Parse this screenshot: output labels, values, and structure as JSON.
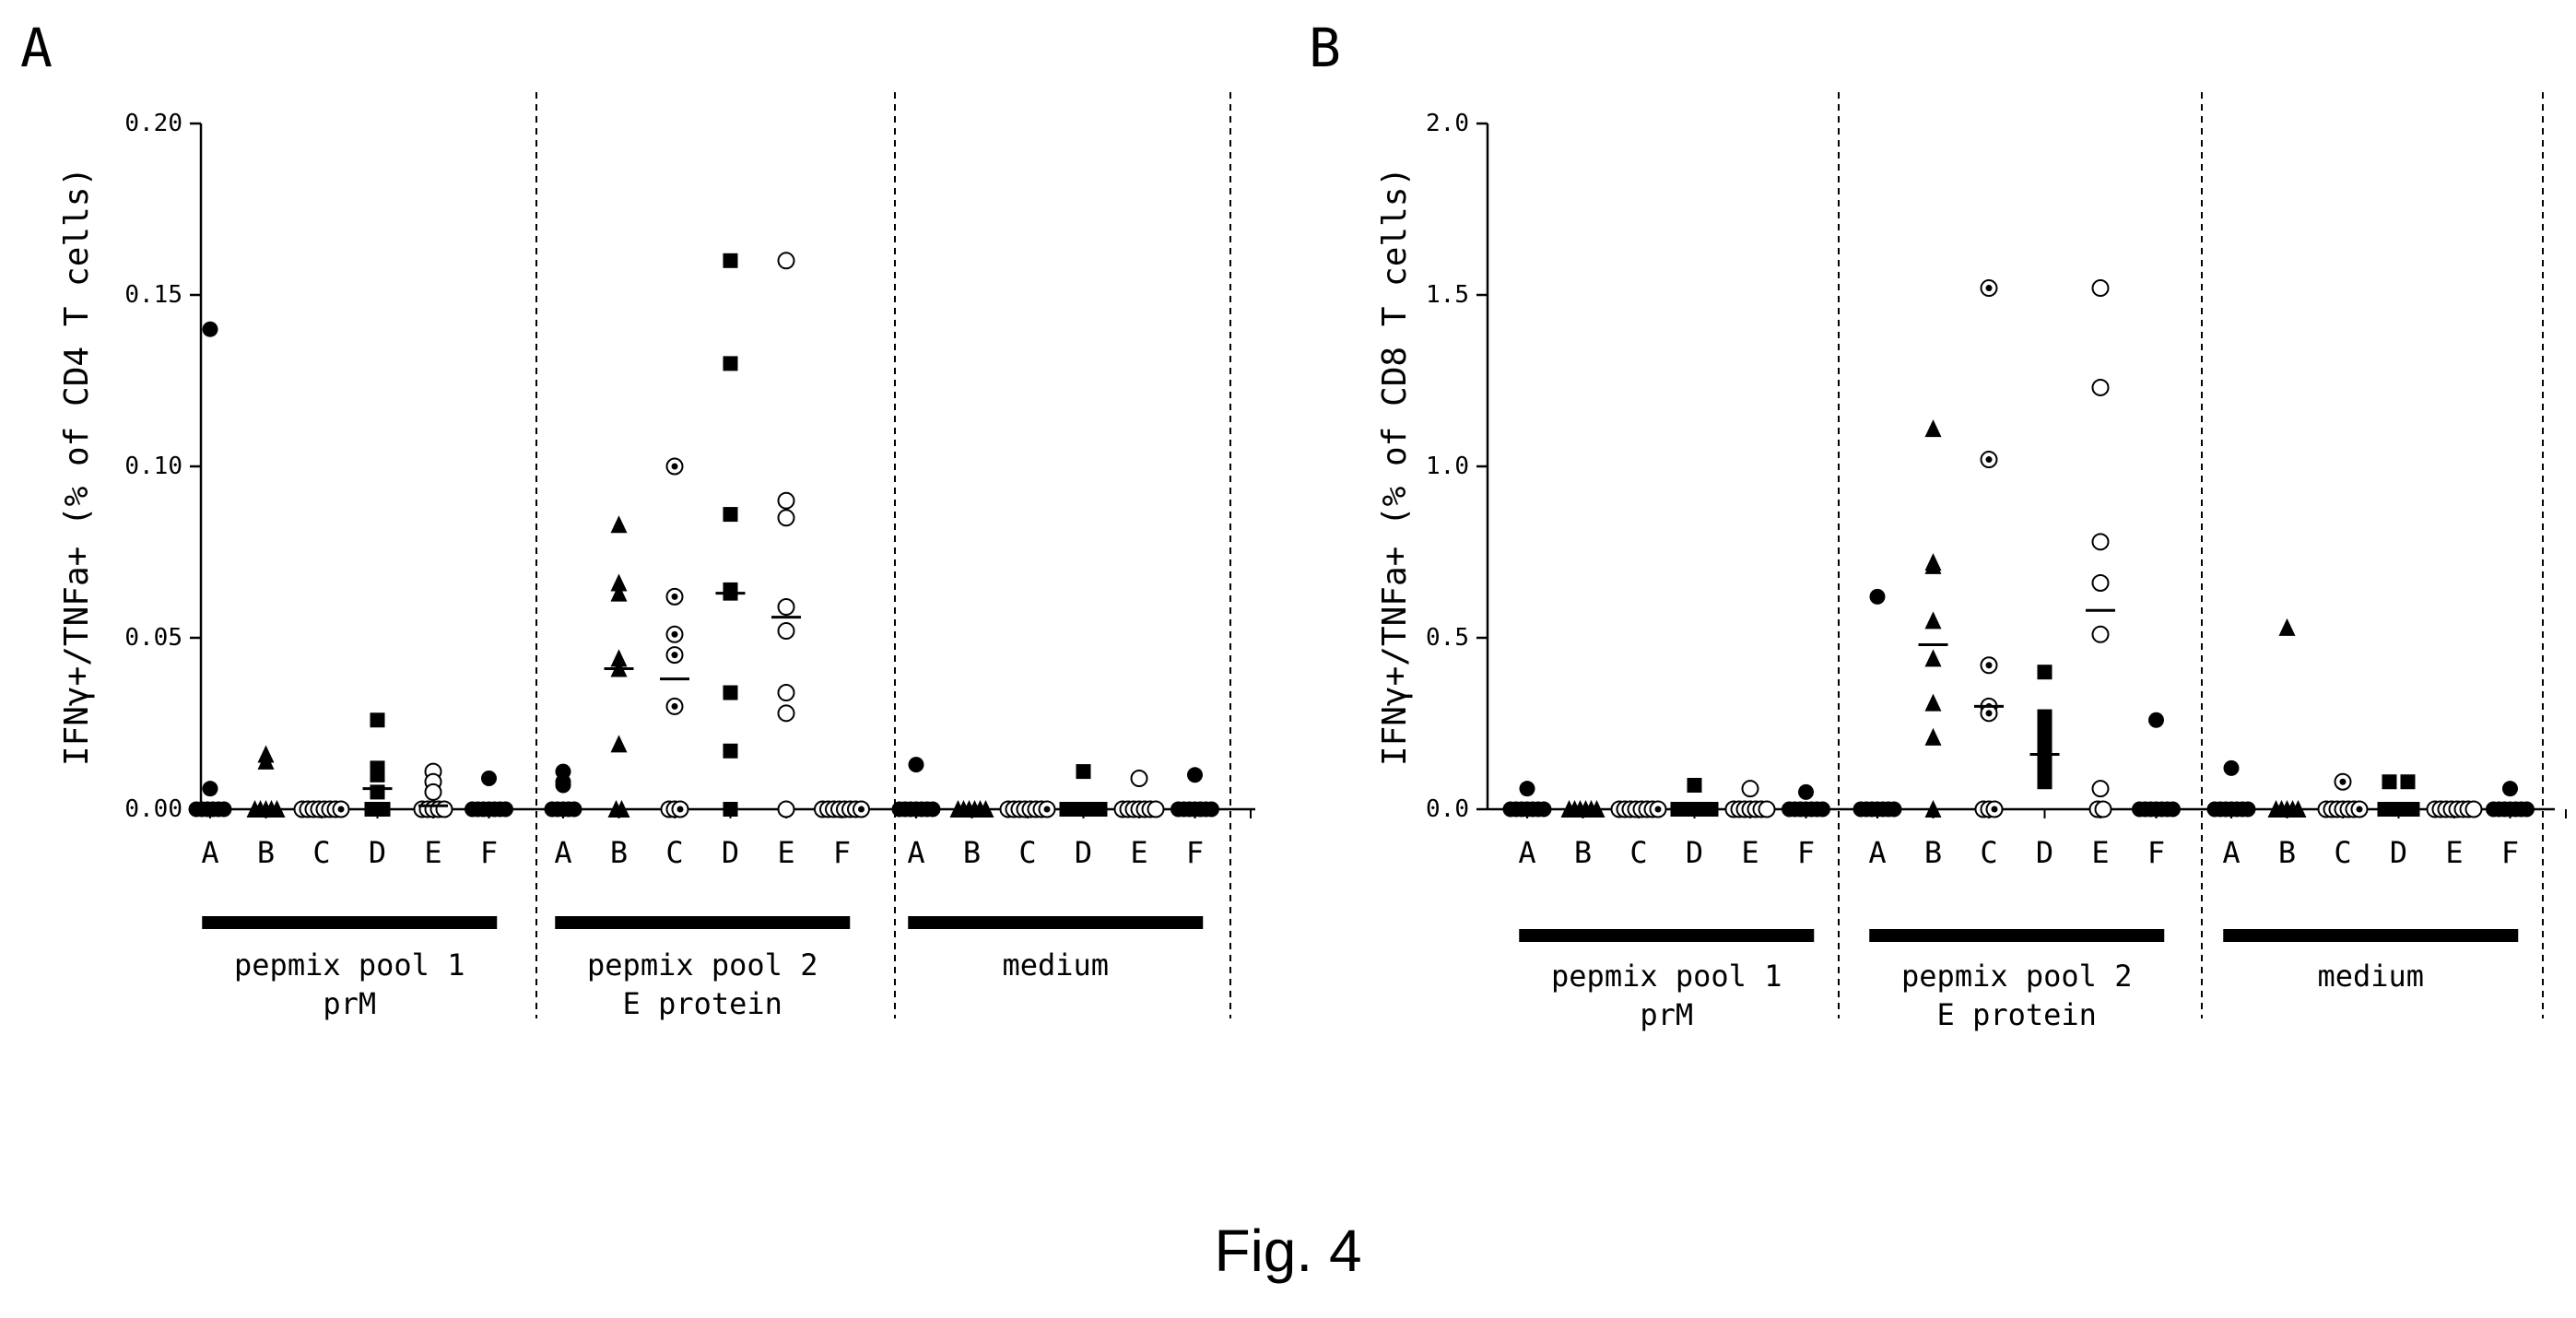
{
  "figure_caption": "Fig. 4",
  "chart_data": [
    {
      "panel_label": "A",
      "type": "scatter",
      "ylabel": "IFNγ+/TNFa+ (% of CD4 T cells)",
      "ylim": [
        0,
        0.2
      ],
      "yticks": [
        0,
        0.05,
        0.1,
        0.15,
        0.2
      ],
      "ytick_labels": [
        "0.00",
        "0.05",
        "0.10",
        "0.15",
        "0.20"
      ],
      "groups": [
        {
          "label": [
            "pepmix pool 1",
            "prM"
          ],
          "categories": [
            "A",
            "B",
            "C",
            "D",
            "E",
            "F"
          ]
        },
        {
          "label": [
            "pepmix pool 2",
            "E protein"
          ],
          "categories": [
            "A",
            "B",
            "C",
            "D",
            "E",
            "F"
          ]
        },
        {
          "label": [
            "medium"
          ],
          "categories": [
            "A",
            "B",
            "C",
            "D",
            "E",
            "F"
          ]
        }
      ],
      "series": [
        {
          "group": 0,
          "category": "A",
          "marker": "filled-circle",
          "values": [
            0.14,
            0.006,
            0,
            0,
            0,
            0,
            0,
            0
          ],
          "median": 0
        },
        {
          "group": 0,
          "category": "B",
          "marker": "filled-triangle",
          "values": [
            0.016,
            0.014,
            0,
            0,
            0,
            0,
            0
          ],
          "median": 0
        },
        {
          "group": 0,
          "category": "C",
          "marker": "dotted-circle",
          "values": [
            0,
            0,
            0,
            0,
            0,
            0,
            0,
            0
          ],
          "median": 0
        },
        {
          "group": 0,
          "category": "D",
          "marker": "filled-square",
          "values": [
            0.026,
            0.012,
            0.011,
            0.01,
            0.005,
            0,
            0,
            0
          ],
          "median": 0.006
        },
        {
          "group": 0,
          "category": "E",
          "marker": "open-circle",
          "values": [
            0.011,
            0.008,
            0.005,
            0,
            0,
            0,
            0,
            0
          ],
          "median": 0.001
        },
        {
          "group": 0,
          "category": "F",
          "marker": "filled-circle",
          "values": [
            0.009,
            0,
            0,
            0,
            0,
            0,
            0,
            0
          ],
          "median": 0
        },
        {
          "group": 1,
          "category": "A",
          "marker": "filled-circle",
          "values": [
            0.011,
            0.008,
            0.007,
            0,
            0,
            0,
            0,
            0
          ],
          "median": 0
        },
        {
          "group": 1,
          "category": "B",
          "marker": "filled-triangle",
          "values": [
            0.083,
            0.066,
            0.063,
            0.044,
            0.041,
            0.019,
            0,
            0
          ],
          "median": 0.041
        },
        {
          "group": 1,
          "category": "C",
          "marker": "dotted-circle",
          "values": [
            0.1,
            0.062,
            0.051,
            0.045,
            0.03,
            0,
            0,
            0
          ],
          "median": 0.038
        },
        {
          "group": 1,
          "category": "D",
          "marker": "filled-square",
          "values": [
            0.16,
            0.13,
            0.086,
            0.064,
            0.063,
            0.034,
            0.017,
            0
          ],
          "median": 0.063
        },
        {
          "group": 1,
          "category": "E",
          "marker": "open-circle",
          "values": [
            0.16,
            0.09,
            0.085,
            0.059,
            0.052,
            0.034,
            0.028,
            0
          ],
          "median": 0.056
        },
        {
          "group": 1,
          "category": "F",
          "marker": "dotted-circle",
          "values": [
            0,
            0,
            0,
            0,
            0,
            0,
            0,
            0
          ],
          "median": 0
        },
        {
          "group": 2,
          "category": "A",
          "marker": "filled-circle",
          "values": [
            0.013,
            0,
            0,
            0,
            0,
            0,
            0,
            0
          ],
          "median": 0
        },
        {
          "group": 2,
          "category": "B",
          "marker": "filled-triangle",
          "values": [
            0,
            0,
            0,
            0,
            0,
            0
          ],
          "median": 0
        },
        {
          "group": 2,
          "category": "C",
          "marker": "dotted-circle",
          "values": [
            0,
            0,
            0,
            0,
            0,
            0,
            0,
            0
          ],
          "median": 0
        },
        {
          "group": 2,
          "category": "D",
          "marker": "filled-square",
          "values": [
            0.011,
            0,
            0,
            0,
            0,
            0,
            0,
            0
          ],
          "median": 0
        },
        {
          "group": 2,
          "category": "E",
          "marker": "open-circle",
          "values": [
            0.009,
            0,
            0,
            0,
            0,
            0,
            0,
            0
          ],
          "median": 0
        },
        {
          "group": 2,
          "category": "F",
          "marker": "filled-circle",
          "values": [
            0.01,
            0,
            0,
            0,
            0,
            0,
            0,
            0
          ],
          "median": 0
        }
      ]
    },
    {
      "panel_label": "B",
      "type": "scatter",
      "ylabel": "IFNγ+/TNFa+ (% of CD8 T cells)",
      "ylim": [
        0,
        2.0
      ],
      "yticks": [
        0,
        0.5,
        1.0,
        1.5,
        2.0
      ],
      "ytick_labels": [
        "0.0",
        "0.5",
        "1.0",
        "1.5",
        "2.0"
      ],
      "groups": [
        {
          "label": [
            "pepmix pool 1",
            "prM"
          ],
          "categories": [
            "A",
            "B",
            "C",
            "D",
            "E",
            "F"
          ]
        },
        {
          "label": [
            "pepmix pool 2",
            "E protein"
          ],
          "categories": [
            "A",
            "B",
            "C",
            "D",
            "E",
            "F"
          ]
        },
        {
          "label": [
            "medium"
          ],
          "categories": [
            "A",
            "B",
            "C",
            "D",
            "E",
            "F"
          ]
        }
      ],
      "series": [
        {
          "group": 0,
          "category": "A",
          "marker": "filled-circle",
          "values": [
            0.06,
            0,
            0,
            0,
            0,
            0,
            0,
            0
          ],
          "median": 0
        },
        {
          "group": 0,
          "category": "B",
          "marker": "filled-triangle",
          "values": [
            0,
            0,
            0,
            0,
            0,
            0
          ],
          "median": 0
        },
        {
          "group": 0,
          "category": "C",
          "marker": "dotted-circle",
          "values": [
            0,
            0,
            0,
            0,
            0,
            0,
            0,
            0
          ],
          "median": 0
        },
        {
          "group": 0,
          "category": "D",
          "marker": "filled-square",
          "values": [
            0.07,
            0,
            0,
            0,
            0,
            0,
            0,
            0
          ],
          "median": 0
        },
        {
          "group": 0,
          "category": "E",
          "marker": "open-circle",
          "values": [
            0.06,
            0,
            0,
            0,
            0,
            0,
            0,
            0
          ],
          "median": 0
        },
        {
          "group": 0,
          "category": "F",
          "marker": "filled-circle",
          "values": [
            0.05,
            0,
            0,
            0,
            0,
            0,
            0,
            0
          ],
          "median": 0
        },
        {
          "group": 1,
          "category": "A",
          "marker": "filled-circle",
          "values": [
            0.62,
            0,
            0,
            0,
            0,
            0,
            0,
            0
          ],
          "median": 0
        },
        {
          "group": 1,
          "category": "B",
          "marker": "filled-triangle",
          "values": [
            1.11,
            0.72,
            0.71,
            0.55,
            0.44,
            0.31,
            0.21,
            0
          ],
          "median": 0.48
        },
        {
          "group": 1,
          "category": "C",
          "marker": "dotted-circle",
          "values": [
            1.52,
            1.02,
            0.42,
            0.3,
            0.28,
            0,
            0,
            0
          ],
          "median": 0.3
        },
        {
          "group": 1,
          "category": "D",
          "marker": "filled-square",
          "values": [
            0.4,
            0.27,
            0.24,
            0.2,
            0.16,
            0.12,
            0.11,
            0.08
          ],
          "median": 0.16
        },
        {
          "group": 1,
          "category": "E",
          "marker": "open-circle",
          "values": [
            1.52,
            1.23,
            0.78,
            0.66,
            0.51,
            0.06,
            0,
            0
          ],
          "median": 0.58
        },
        {
          "group": 1,
          "category": "F",
          "marker": "filled-circle",
          "values": [
            0.26,
            0,
            0,
            0,
            0,
            0,
            0,
            0
          ],
          "median": 0
        },
        {
          "group": 2,
          "category": "A",
          "marker": "filled-circle",
          "values": [
            0.12,
            0,
            0,
            0,
            0,
            0,
            0,
            0
          ],
          "median": 0
        },
        {
          "group": 2,
          "category": "B",
          "marker": "filled-triangle",
          "values": [
            0.53,
            0,
            0,
            0,
            0,
            0
          ],
          "median": 0
        },
        {
          "group": 2,
          "category": "C",
          "marker": "dotted-circle",
          "values": [
            0.08,
            0,
            0,
            0,
            0,
            0,
            0,
            0
          ],
          "median": 0
        },
        {
          "group": 2,
          "category": "D",
          "marker": "filled-square",
          "values": [
            0.08,
            0.08,
            0,
            0,
            0,
            0,
            0,
            0
          ],
          "median": 0
        },
        {
          "group": 2,
          "category": "E",
          "marker": "open-circle",
          "values": [
            0,
            0,
            0,
            0,
            0,
            0,
            0,
            0
          ],
          "median": 0
        },
        {
          "group": 2,
          "category": "F",
          "marker": "filled-circle",
          "values": [
            0.06,
            0,
            0,
            0,
            0,
            0,
            0,
            0
          ],
          "median": 0
        }
      ]
    }
  ]
}
